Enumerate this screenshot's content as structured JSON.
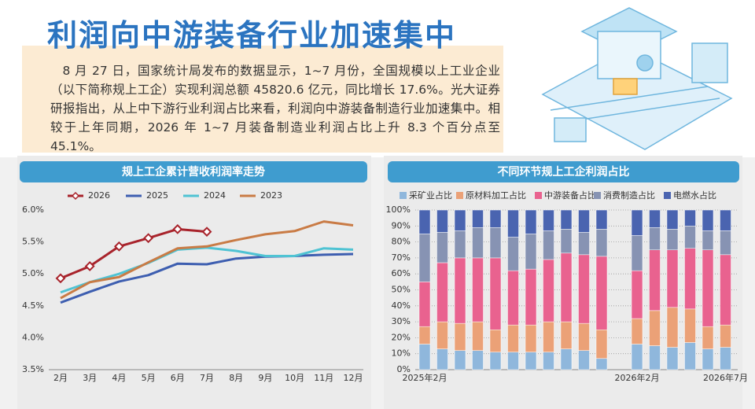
{
  "header": {
    "title": "利润向中游装备行业加速集中",
    "text": "8 月 27 日，国家统计局发布的数据显示，1~7 月份，全国规模以上工业企业（以下简称规上工企）实现利润总额 45820.6 亿元，同比增长 17.6%。光大证券研报指出，从上中下游行业利润占比来看，利润向中游装备制造行业加速集中。相较于上年同期，2026 年 1~7 月装备制造业利润占比上升 8.3 个百分点至 45.1%。"
  },
  "chart_data": [
    {
      "type": "line",
      "title": "规上工企累计营收利润率走势",
      "categories": [
        "2月",
        "3月",
        "4月",
        "5月",
        "6月",
        "7月",
        "8月",
        "9月",
        "10月",
        "11月",
        "12月"
      ],
      "series": [
        {
          "name": "2026",
          "color": "#a8232b",
          "marker": "diamond",
          "values": [
            4.93,
            5.12,
            5.43,
            5.56,
            5.7,
            5.66,
            null,
            null,
            null,
            null,
            null
          ]
        },
        {
          "name": "2025",
          "color": "#3d5eb0",
          "values": [
            4.55,
            4.72,
            4.88,
            4.98,
            5.16,
            5.15,
            5.24,
            5.27,
            5.28,
            5.3,
            5.31
          ]
        },
        {
          "name": "2024",
          "color": "#4fc3d3",
          "values": [
            4.71,
            4.87,
            5.0,
            5.17,
            5.38,
            5.41,
            5.36,
            5.28,
            5.28,
            5.4,
            5.38
          ]
        },
        {
          "name": "2023",
          "color": "#c97b45",
          "values": [
            4.62,
            4.87,
            4.95,
            5.18,
            5.4,
            5.43,
            5.53,
            5.62,
            5.67,
            5.82,
            5.76
          ]
        }
      ],
      "ylim": [
        3.5,
        6.0
      ],
      "yticks": [
        {
          "value": 3.5,
          "label": "3.5%"
        },
        {
          "value": 4.0,
          "label": "4.0%"
        },
        {
          "value": 4.5,
          "label": "4.5%"
        },
        {
          "value": 5.0,
          "label": "5.0%"
        },
        {
          "value": 5.5,
          "label": "5.5%"
        },
        {
          "value": 6.0,
          "label": "6.0%"
        }
      ],
      "grid": false
    },
    {
      "type": "bar",
      "stacked": true,
      "title": "不同环节规上工企利润占比",
      "categories": [
        "2025年2月",
        null,
        null,
        null,
        null,
        null,
        null,
        null,
        null,
        null,
        null,
        null,
        "2026年2月",
        null,
        null,
        null,
        null,
        "2026年7月"
      ],
      "series": [
        {
          "name": "采矿业占比",
          "color": "#8fb7dc",
          "values": [
            16,
            13,
            12,
            12,
            11,
            11,
            11,
            11,
            13,
            12,
            7,
            null,
            16,
            15,
            14,
            17,
            13,
            14
          ]
        },
        {
          "name": "原材料加工占比",
          "color": "#eba177",
          "values": [
            11,
            17,
            17,
            18,
            14,
            17,
            17,
            19,
            17,
            17,
            18,
            null,
            16,
            22,
            25,
            21,
            14,
            14
          ]
        },
        {
          "name": "中游装备占比",
          "color": "#e9628f",
          "values": [
            28,
            37,
            41,
            40,
            45,
            34,
            35,
            39,
            43,
            43,
            46,
            null,
            30,
            38,
            36,
            38,
            48,
            44
          ]
        },
        {
          "name": "消费制造占比",
          "color": "#8793b3",
          "values": [
            30,
            19,
            17,
            19,
            19,
            21,
            22,
            18,
            15,
            14,
            17,
            null,
            22,
            14,
            13,
            14,
            12,
            15
          ]
        },
        {
          "name": "电燃水占比",
          "color": "#4a64b0",
          "values": [
            15,
            14,
            13,
            11,
            11,
            17,
            15,
            13,
            12,
            14,
            12,
            null,
            16,
            11,
            12,
            10,
            13,
            13
          ]
        }
      ],
      "ylim": [
        0,
        100
      ],
      "yticks": [
        {
          "value": 0,
          "label": "0%"
        },
        {
          "value": 10,
          "label": "10%"
        },
        {
          "value": 20,
          "label": "20%"
        },
        {
          "value": 30,
          "label": "30%"
        },
        {
          "value": 40,
          "label": "40%"
        },
        {
          "value": 50,
          "label": "50%"
        },
        {
          "value": 60,
          "label": "60%"
        },
        {
          "value": 70,
          "label": "70%"
        },
        {
          "value": 80,
          "label": "80%"
        },
        {
          "value": 90,
          "label": "90%"
        },
        {
          "value": 100,
          "label": "100%"
        }
      ],
      "grid": true
    }
  ]
}
